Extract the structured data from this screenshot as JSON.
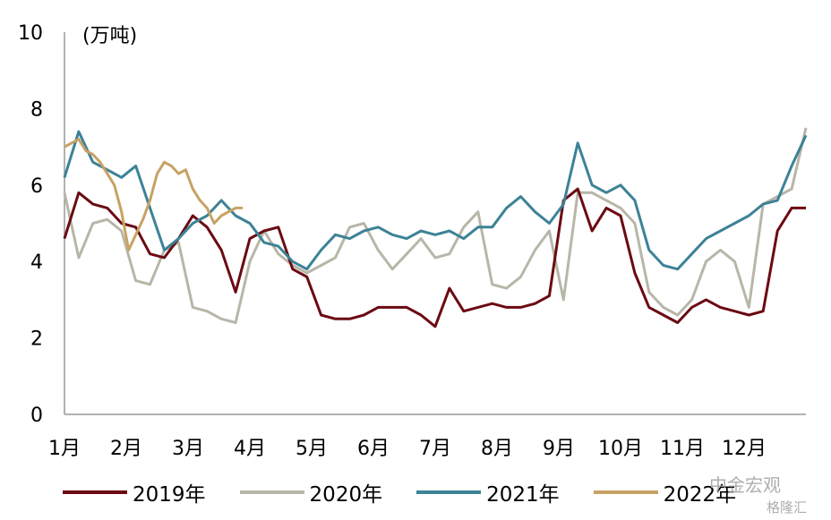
{
  "chart_data": {
    "type": "line",
    "unit_label": "(万吨)",
    "title": "",
    "xlabel": "",
    "ylabel": "",
    "ylim": [
      0,
      10
    ],
    "yticks": [
      "0",
      "2",
      "4",
      "6",
      "8",
      "10"
    ],
    "xticks": [
      "1月",
      "2月",
      "3月",
      "4月",
      "5月",
      "6月",
      "7月",
      "8月",
      "9月",
      "10月",
      "11月",
      "12月"
    ],
    "x_domain_weeks": [
      0,
      52
    ],
    "grid": false,
    "legend_position": "bottom",
    "series": [
      {
        "name": "2019年",
        "color": "#6b0a12",
        "x": [
          0,
          1,
          2,
          3,
          4,
          5,
          6,
          7,
          8,
          9,
          10,
          11,
          12,
          13,
          14,
          15,
          16,
          17,
          18,
          19,
          20,
          21,
          22,
          23,
          24,
          25,
          26,
          27,
          28,
          29,
          30,
          31,
          32,
          33,
          34,
          35,
          36,
          37,
          38,
          39,
          40,
          41,
          42,
          43,
          44,
          45,
          46,
          47,
          48,
          49,
          50,
          51,
          52
        ],
        "values": [
          4.6,
          5.8,
          5.5,
          5.4,
          5.0,
          4.9,
          4.2,
          4.1,
          4.6,
          5.2,
          4.9,
          4.3,
          3.2,
          4.6,
          4.8,
          4.9,
          3.8,
          3.6,
          2.6,
          2.5,
          2.5,
          2.6,
          2.8,
          2.8,
          2.8,
          2.6,
          2.3,
          3.3,
          2.7,
          2.8,
          2.9,
          2.8,
          2.8,
          2.9,
          3.1,
          5.6,
          5.9,
          4.8,
          5.4,
          5.2,
          3.7,
          2.8,
          2.6,
          2.4,
          2.8,
          3.0,
          2.8,
          2.7,
          2.6,
          2.7,
          4.8,
          5.4,
          5.4
        ]
      },
      {
        "name": "2020年",
        "color": "#b8b6a8",
        "x": [
          0,
          1,
          2,
          3,
          4,
          5,
          6,
          7,
          8,
          9,
          10,
          11,
          12,
          13,
          14,
          15,
          16,
          17,
          18,
          19,
          20,
          21,
          22,
          23,
          24,
          25,
          26,
          27,
          28,
          29,
          30,
          31,
          32,
          33,
          34,
          35,
          36,
          37,
          38,
          39,
          40,
          41,
          42,
          43,
          44,
          45,
          46,
          47,
          48,
          49,
          50,
          51,
          52
        ],
        "values": [
          5.8,
          4.1,
          5.0,
          5.1,
          4.8,
          3.5,
          3.4,
          4.3,
          4.5,
          2.8,
          2.7,
          2.5,
          2.4,
          4.0,
          4.8,
          4.2,
          3.9,
          3.7,
          3.9,
          4.1,
          4.9,
          5.0,
          4.3,
          3.8,
          4.2,
          4.6,
          4.1,
          4.2,
          4.9,
          5.3,
          3.4,
          3.3,
          3.6,
          4.3,
          4.8,
          3.0,
          5.8,
          5.8,
          5.6,
          5.4,
          5.0,
          3.2,
          2.8,
          2.6,
          3.0,
          4.0,
          4.3,
          4.0,
          2.8,
          5.5,
          5.7,
          5.9,
          7.5
        ]
      },
      {
        "name": "2021年",
        "color": "#3d8296",
        "x": [
          0,
          1,
          2,
          3,
          4,
          5,
          6,
          7,
          8,
          9,
          10,
          11,
          12,
          13,
          14,
          15,
          16,
          17,
          18,
          19,
          20,
          21,
          22,
          23,
          24,
          25,
          26,
          27,
          28,
          29,
          30,
          31,
          32,
          33,
          34,
          35,
          36,
          37,
          38,
          39,
          40,
          41,
          42,
          43,
          44,
          45,
          46,
          47,
          48,
          49,
          50,
          51,
          52
        ],
        "values": [
          6.2,
          7.4,
          6.6,
          6.4,
          6.2,
          6.5,
          5.4,
          4.3,
          4.6,
          5.0,
          5.2,
          5.6,
          5.2,
          5.0,
          4.5,
          4.4,
          4.0,
          3.8,
          4.3,
          4.7,
          4.6,
          4.8,
          4.9,
          4.7,
          4.6,
          4.8,
          4.7,
          4.8,
          4.6,
          4.9,
          4.9,
          5.4,
          5.7,
          5.3,
          5.0,
          5.5,
          7.1,
          6.0,
          5.8,
          6.0,
          5.6,
          4.3,
          3.9,
          3.8,
          4.2,
          4.6,
          4.8,
          5.0,
          5.2,
          5.5,
          5.6,
          6.5,
          7.3
        ]
      },
      {
        "name": "2022年",
        "color": "#c7a264",
        "x": [
          0,
          0.5,
          1,
          1.5,
          2,
          2.5,
          3,
          3.5,
          4,
          4.5,
          5,
          5.5,
          6,
          6.5,
          7,
          7.5,
          8,
          8.5,
          9,
          9.5,
          10,
          10.5,
          11,
          11.5,
          12,
          12.5
        ],
        "values": [
          7.0,
          7.1,
          7.2,
          6.9,
          6.8,
          6.6,
          6.3,
          6.0,
          5.3,
          4.3,
          4.7,
          5.1,
          5.6,
          6.3,
          6.6,
          6.5,
          6.3,
          6.4,
          5.9,
          5.6,
          5.4,
          5.0,
          5.2,
          5.3,
          5.4,
          5.4
        ]
      }
    ]
  },
  "watermark": {
    "line1": "中金宏观",
    "line2": "格隆汇"
  }
}
